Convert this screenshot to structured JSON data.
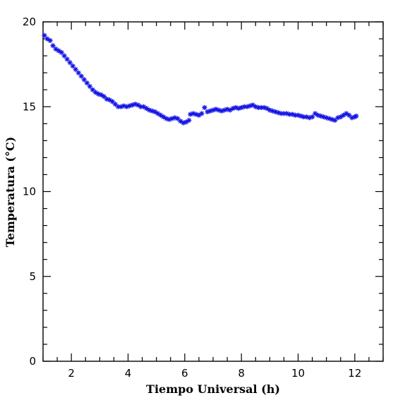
{
  "chart_data": {
    "type": "scatter",
    "marker": "asterisk",
    "color": "#1515e6",
    "xlabel": "Tiempo Universal (h)",
    "ylabel": "Temperatura (°C)",
    "xlim": [
      1,
      13
    ],
    "ylim": [
      0,
      20
    ],
    "xticks": [
      2,
      4,
      6,
      8,
      10,
      12
    ],
    "yticks": [
      0,
      5,
      10,
      15,
      20
    ],
    "x_minor_step": 0.5,
    "y_minor_step": 1,
    "grid": false,
    "points": [
      [
        1.05,
        19.2
      ],
      [
        1.15,
        19.0
      ],
      [
        1.25,
        18.9
      ],
      [
        1.35,
        18.6
      ],
      [
        1.45,
        18.4
      ],
      [
        1.55,
        18.3
      ],
      [
        1.65,
        18.2
      ],
      [
        1.75,
        18.0
      ],
      [
        1.85,
        17.8
      ],
      [
        1.95,
        17.6
      ],
      [
        2.05,
        17.4
      ],
      [
        2.15,
        17.2
      ],
      [
        2.25,
        17.0
      ],
      [
        2.35,
        16.8
      ],
      [
        2.45,
        16.6
      ],
      [
        2.55,
        16.4
      ],
      [
        2.65,
        16.2
      ],
      [
        2.75,
        16.0
      ],
      [
        2.85,
        15.85
      ],
      [
        2.95,
        15.75
      ],
      [
        3.05,
        15.7
      ],
      [
        3.15,
        15.6
      ],
      [
        3.25,
        15.45
      ],
      [
        3.35,
        15.4
      ],
      [
        3.45,
        15.3
      ],
      [
        3.55,
        15.15
      ],
      [
        3.65,
        15.0
      ],
      [
        3.75,
        15.0
      ],
      [
        3.85,
        15.05
      ],
      [
        3.95,
        15.0
      ],
      [
        4.05,
        15.05
      ],
      [
        4.15,
        15.1
      ],
      [
        4.25,
        15.15
      ],
      [
        4.35,
        15.1
      ],
      [
        4.45,
        15.0
      ],
      [
        4.55,
        15.0
      ],
      [
        4.65,
        14.9
      ],
      [
        4.75,
        14.8
      ],
      [
        4.85,
        14.75
      ],
      [
        4.95,
        14.7
      ],
      [
        5.05,
        14.6
      ],
      [
        5.15,
        14.5
      ],
      [
        5.25,
        14.4
      ],
      [
        5.35,
        14.3
      ],
      [
        5.45,
        14.25
      ],
      [
        5.55,
        14.3
      ],
      [
        5.65,
        14.35
      ],
      [
        5.75,
        14.3
      ],
      [
        5.85,
        14.15
      ],
      [
        5.95,
        14.05
      ],
      [
        6.05,
        14.1
      ],
      [
        6.15,
        14.2
      ],
      [
        6.2,
        14.55
      ],
      [
        6.3,
        14.6
      ],
      [
        6.4,
        14.55
      ],
      [
        6.5,
        14.5
      ],
      [
        6.6,
        14.6
      ],
      [
        6.7,
        14.95
      ],
      [
        6.8,
        14.7
      ],
      [
        6.9,
        14.75
      ],
      [
        7.0,
        14.8
      ],
      [
        7.1,
        14.85
      ],
      [
        7.2,
        14.8
      ],
      [
        7.3,
        14.75
      ],
      [
        7.4,
        14.8
      ],
      [
        7.5,
        14.85
      ],
      [
        7.6,
        14.8
      ],
      [
        7.7,
        14.9
      ],
      [
        7.8,
        14.95
      ],
      [
        7.9,
        14.9
      ],
      [
        8.0,
        14.95
      ],
      [
        8.1,
        15.0
      ],
      [
        8.2,
        15.0
      ],
      [
        8.3,
        15.05
      ],
      [
        8.4,
        15.1
      ],
      [
        8.5,
        15.0
      ],
      [
        8.6,
        14.95
      ],
      [
        8.7,
        14.95
      ],
      [
        8.8,
        14.95
      ],
      [
        8.9,
        14.9
      ],
      [
        9.0,
        14.8
      ],
      [
        9.1,
        14.75
      ],
      [
        9.2,
        14.7
      ],
      [
        9.3,
        14.65
      ],
      [
        9.4,
        14.6
      ],
      [
        9.5,
        14.6
      ],
      [
        9.6,
        14.6
      ],
      [
        9.7,
        14.55
      ],
      [
        9.8,
        14.55
      ],
      [
        9.9,
        14.5
      ],
      [
        10.0,
        14.5
      ],
      [
        10.1,
        14.45
      ],
      [
        10.2,
        14.4
      ],
      [
        10.3,
        14.4
      ],
      [
        10.4,
        14.35
      ],
      [
        10.5,
        14.4
      ],
      [
        10.6,
        14.6
      ],
      [
        10.7,
        14.5
      ],
      [
        10.8,
        14.45
      ],
      [
        10.9,
        14.4
      ],
      [
        11.0,
        14.35
      ],
      [
        11.1,
        14.3
      ],
      [
        11.2,
        14.25
      ],
      [
        11.3,
        14.2
      ],
      [
        11.4,
        14.35
      ],
      [
        11.5,
        14.4
      ],
      [
        11.6,
        14.5
      ],
      [
        11.7,
        14.6
      ],
      [
        11.8,
        14.5
      ],
      [
        11.9,
        14.35
      ],
      [
        12.0,
        14.4
      ],
      [
        12.05,
        14.45
      ]
    ]
  }
}
